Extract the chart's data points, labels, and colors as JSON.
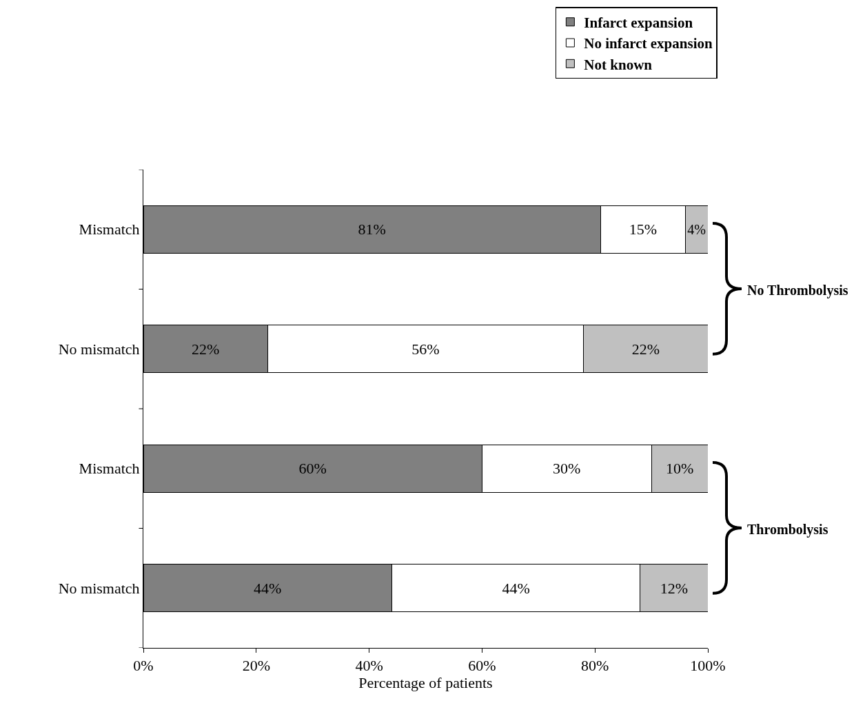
{
  "chart_data": {
    "type": "bar",
    "orientation": "horizontal",
    "stacked": true,
    "xlabel": "Percentage of patients",
    "categories": [
      "Mismatch",
      "No mismatch",
      "Mismatch",
      "No mismatch"
    ],
    "series": [
      {
        "name": "Infarct expansion",
        "color": "#808080",
        "values": [
          81,
          22,
          60,
          44
        ],
        "value_labels": [
          "81%",
          "22%",
          "60%",
          "44%"
        ]
      },
      {
        "name": "No infarct expansion",
        "color": "#ffffff",
        "values": [
          15,
          56,
          30,
          44
        ],
        "value_labels": [
          "15%",
          "56%",
          "30%",
          "44%"
        ]
      },
      {
        "name": "Not known",
        "color": "#c0c0c0",
        "values": [
          4,
          22,
          10,
          12
        ],
        "value_labels": [
          "4%",
          "22%",
          "10%",
          "12%"
        ]
      }
    ],
    "xlim": [
      0,
      100
    ],
    "xticks": [
      {
        "value": 0,
        "label": "0%"
      },
      {
        "value": 20,
        "label": "20%"
      },
      {
        "value": 40,
        "label": "40%"
      },
      {
        "value": 60,
        "label": "60%"
      },
      {
        "value": 80,
        "label": "80%"
      },
      {
        "value": 100,
        "label": "100%"
      }
    ],
    "annotations": [
      "No Thrombolysis",
      "Thrombolysis"
    ],
    "grid": false,
    "legend": "top right"
  }
}
